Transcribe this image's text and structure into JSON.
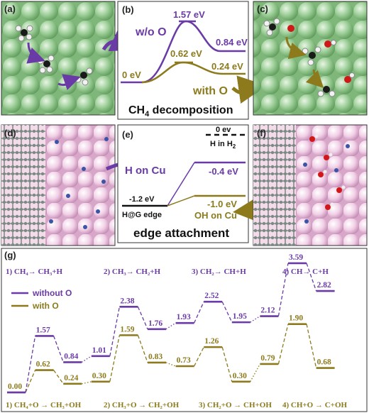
{
  "colors": {
    "without_o": "#6a3aa6",
    "with_o": "#8c7a1c",
    "graphene": "#d9a8cf",
    "cu_green": "#8dc48a"
  },
  "labels": {
    "a": "(a)",
    "b": "(b)",
    "c": "(c)",
    "d": "(d)",
    "e": "(e)",
    "f": "(f)",
    "g": "(g)"
  },
  "panel_b": {
    "wo_label": "w/o O",
    "with_label": "with O",
    "title": "CH",
    "title_sub": "4",
    "title_rest": " decomposition",
    "e_start": "0 eV",
    "e_wo_ts": "1.57 eV",
    "e_wo_end": "0.84 eV",
    "e_with_ts": "0.62 eV",
    "e_with_end": "0.24 eV"
  },
  "panel_e": {
    "title": "edge attachment",
    "h_on_cu": "H on Cu",
    "e_zero": "0 ev",
    "h_in_h2_a": "H in H",
    "h_in_h2_sub": "2",
    "e_neg04": "-0.4 eV",
    "e_neg12": "-1.2 eV",
    "hg_edge": "H@G edge",
    "e_neg10": "-1.0 eV",
    "oh_on_cu": "OH on Cu"
  },
  "panel_g": {
    "legend_without": "without O",
    "legend_with": "with O",
    "steps_top": [
      "1) CH₄→ CH₃+H",
      "2) CH₃→ CH₂+H",
      "3) CH₂→ CH+H",
      "4) CH→ C+H"
    ],
    "steps_bottom": [
      "1) CH₄+O → CH₃+OH",
      "2) CH₃+O → CH₂+OH",
      "3) CH₂+O → CH+OH",
      "4) CH+O → C+OH"
    ]
  },
  "chart_data": {
    "type": "line",
    "series": [
      {
        "name": "without O",
        "values": [
          0.0,
          1.57,
          0.84,
          1.01,
          2.38,
          1.76,
          1.93,
          2.52,
          1.95,
          2.12,
          3.59,
          2.82
        ]
      },
      {
        "name": "with O",
        "values": [
          0.0,
          0.62,
          0.24,
          0.3,
          1.59,
          0.83,
          0.73,
          1.26,
          0.3,
          0.79,
          1.9,
          0.68
        ]
      }
    ],
    "value_labels_without": [
      "1.57",
      "0.84",
      "1.01",
      "2.38",
      "1.76",
      "1.93",
      "2.52",
      "1.95",
      "2.12",
      "3.59",
      "2.82"
    ],
    "value_labels_with": [
      "0.00",
      "0.62",
      "0.24",
      "0.30",
      "1.59",
      "0.83",
      "0.73",
      "1.26",
      "0.30",
      "0.79",
      "1.90",
      "0.68"
    ]
  }
}
